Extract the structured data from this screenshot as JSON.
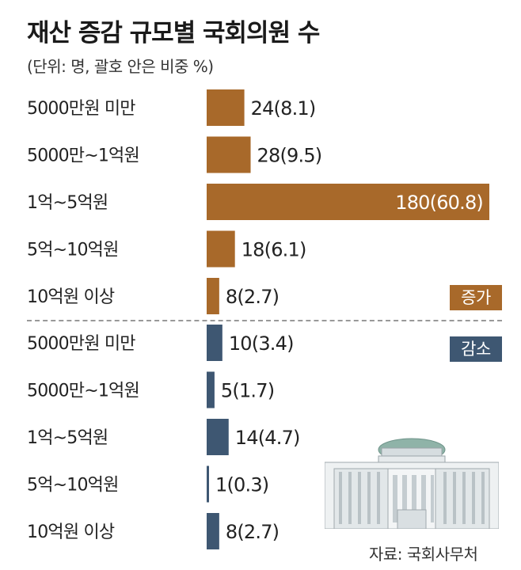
{
  "header": {
    "title": "재산 증감 규모별 국회의원 수",
    "subtitle": "(단위: 명, 괄호 안은 비중 %)"
  },
  "legend": {
    "increase": "증가",
    "decrease": "감소"
  },
  "source": "자료: 국회사무처",
  "colors": {
    "increase": "#a8692a",
    "decrease": "#3e5772"
  },
  "chart_data": {
    "type": "bar",
    "orientation": "horizontal",
    "title": "재산 증감 규모별 국회의원 수",
    "subtitle": "(단위: 명, 괄호 안은 비중 %)",
    "series": [
      {
        "name": "증가",
        "categories": [
          "5000만원 미만",
          "5000만~1억원",
          "1억~5억원",
          "5억~10억원",
          "10억원 이상"
        ],
        "values": [
          24,
          28,
          180,
          18,
          8
        ],
        "shares": [
          8.1,
          9.5,
          60.8,
          6.1,
          2.7
        ],
        "labels": [
          "24(8.1)",
          "28(9.5)",
          "180(60.8)",
          "18(6.1)",
          "8(2.7)"
        ]
      },
      {
        "name": "감소",
        "categories": [
          "5000만원 미만",
          "5000만~1억원",
          "1억~5억원",
          "5억~10억원",
          "10억원 이상"
        ],
        "values": [
          10,
          5,
          14,
          1,
          8
        ],
        "shares": [
          3.4,
          1.7,
          4.7,
          0.3,
          2.7
        ],
        "labels": [
          "10(3.4)",
          "5(1.7)",
          "14(4.7)",
          "1(0.3)",
          "8(2.7)"
        ]
      }
    ],
    "xlim": [
      0,
      180
    ],
    "grid": false,
    "legend_position": "right"
  }
}
